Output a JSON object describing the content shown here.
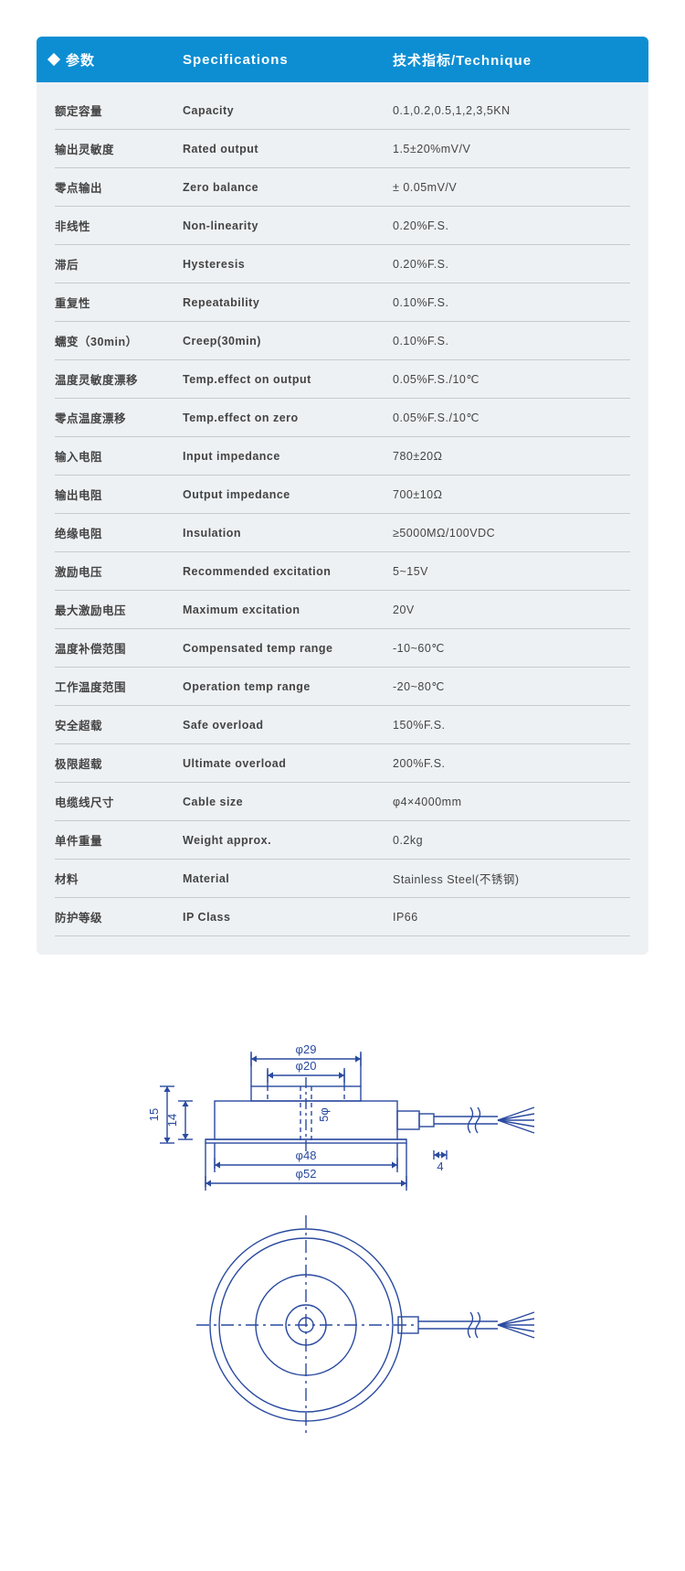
{
  "header": {
    "col1": "参数",
    "col2": "Specifications",
    "col3": "技术指标/Technique"
  },
  "rows": [
    {
      "cn": "额定容量",
      "en": "Capacity",
      "val": "0.1,0.2,0.5,1,2,3,5KN"
    },
    {
      "cn": "输出灵敏度",
      "en": "Rated output",
      "val": "1.5±20%mV/V"
    },
    {
      "cn": "零点输出",
      "en": "Zero balance",
      "val": "± 0.05mV/V"
    },
    {
      "cn": "非线性",
      "en": "Non-linearity",
      "val": "0.20%F.S."
    },
    {
      "cn": "滞后",
      "en": "Hysteresis",
      "val": "0.20%F.S."
    },
    {
      "cn": "重复性",
      "en": "Repeatability",
      "val": "0.10%F.S."
    },
    {
      "cn": "蠕变（30min）",
      "en": "Creep(30min)",
      "val": "0.10%F.S."
    },
    {
      "cn": "温度灵敏度漂移",
      "en": "Temp.effect on output",
      "val": "0.05%F.S./10℃"
    },
    {
      "cn": "零点温度漂移",
      "en": "Temp.effect on zero",
      "val": "0.05%F.S./10℃"
    },
    {
      "cn": "输入电阻",
      "en": "Input impedance",
      "val": "780±20Ω"
    },
    {
      "cn": "输出电阻",
      "en": "Output impedance",
      "val": "700±10Ω"
    },
    {
      "cn": "绝缘电阻",
      "en": "Insulation",
      "val": "≥5000MΩ/100VDC"
    },
    {
      "cn": "激励电压",
      "en": "Recommended excitation",
      "val": "5~15V"
    },
    {
      "cn": "最大激励电压",
      "en": "Maximum excitation",
      "val": "20V"
    },
    {
      "cn": "温度补偿范围",
      "en": "Compensated temp range",
      "val": "-10~60℃"
    },
    {
      "cn": "工作温度范围",
      "en": "Operation temp range",
      "val": "-20~80℃"
    },
    {
      "cn": "安全超载",
      "en": "Safe overload",
      "val": "150%F.S."
    },
    {
      "cn": "极限超载",
      "en": "Ultimate overload",
      "val": "200%F.S."
    },
    {
      "cn": "电缆线尺寸",
      "en": "Cable size",
      "val": "φ4×4000mm"
    },
    {
      "cn": "单件重量",
      "en": "Weight approx.",
      "val": "0.2kg"
    },
    {
      "cn": "材料",
      "en": "Material",
      "val": "Stainless Steel(不锈钢)"
    },
    {
      "cn": "防护等级",
      "en": "IP Class",
      "val": "IP66"
    }
  ],
  "diagram": {
    "stroke": "#2a4aa0",
    "stroke_width": 1.4,
    "text_color": "#2a4aa0",
    "font_size": 13,
    "side_view": {
      "dims": {
        "d29": "φ29",
        "d20": "φ20",
        "d5": "5φ",
        "d48": "φ48",
        "d52": "φ52",
        "h15": "15",
        "h14": "14",
        "w4": "4"
      }
    }
  }
}
